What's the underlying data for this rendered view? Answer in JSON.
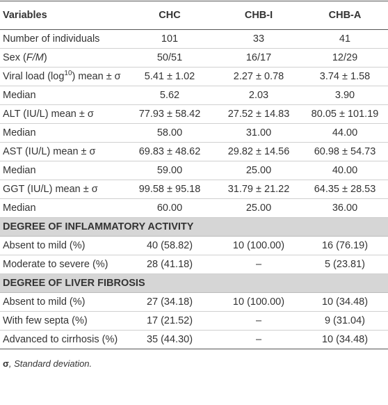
{
  "table": {
    "header": [
      "Variables",
      "CHC",
      "CHB-I",
      "CHB-A"
    ],
    "rows": [
      {
        "label": [
          {
            "text": "Number of individuals"
          }
        ],
        "values": [
          "101",
          "33",
          "41"
        ]
      },
      {
        "label": [
          {
            "text": "Sex ("
          },
          {
            "text": "F/M",
            "italic": true
          },
          {
            "text": ")"
          }
        ],
        "values": [
          "50/51",
          "16/17",
          "12/29"
        ]
      },
      {
        "label": [
          {
            "text": "Viral load (log"
          },
          {
            "text": "10",
            "sup": true
          },
          {
            "text": ") mean ± σ"
          }
        ],
        "values": [
          "5.41 ± 1.02",
          "2.27 ± 0.78",
          "3.74 ± 1.58"
        ]
      },
      {
        "label": [
          {
            "text": "Median"
          }
        ],
        "values": [
          "5.62",
          "2.03",
          "3.90"
        ]
      },
      {
        "label": [
          {
            "text": "ALT (IU/L) mean ± σ"
          }
        ],
        "values": [
          "77.93 ± 58.42",
          "27.52 ± 14.83",
          "80.05 ± 101.19"
        ]
      },
      {
        "label": [
          {
            "text": "Median"
          }
        ],
        "values": [
          "58.00",
          "31.00",
          "44.00"
        ]
      },
      {
        "label": [
          {
            "text": "AST (IU/L) mean ± σ"
          }
        ],
        "values": [
          "69.83 ± 48.62",
          "29.82 ± 14.56",
          "60.98 ± 54.73"
        ]
      },
      {
        "label": [
          {
            "text": "Median"
          }
        ],
        "values": [
          "59.00",
          "25.00",
          "40.00"
        ]
      },
      {
        "label": [
          {
            "text": "GGT (IU/L) mean ± σ"
          }
        ],
        "values": [
          "99.58 ± 95.18",
          "31.79 ± 21.22",
          "64.35 ± 28.53"
        ]
      },
      {
        "label": [
          {
            "text": "Median"
          }
        ],
        "values": [
          "60.00",
          "25.00",
          "36.00"
        ]
      }
    ],
    "sections": [
      {
        "title": "DEGREE OF INFLAMMATORY ACTIVITY",
        "rows": [
          {
            "label": [
              {
                "text": "Absent to mild (%)"
              }
            ],
            "values": [
              "40 (58.82)",
              "10 (100.00)",
              "16 (76.19)"
            ]
          },
          {
            "label": [
              {
                "text": "Moderate to severe (%)"
              }
            ],
            "values": [
              "28 (41.18)",
              "–",
              "5 (23.81)"
            ]
          }
        ]
      },
      {
        "title": "DEGREE OF LIVER FIBROSIS",
        "rows": [
          {
            "label": [
              {
                "text": "Absent to mild (%)"
              }
            ],
            "values": [
              "27 (34.18)",
              "10 (100.00)",
              "10 (34.48)"
            ]
          },
          {
            "label": [
              {
                "text": "With few septa (%)"
              }
            ],
            "values": [
              "17 (21.52)",
              "–",
              "9 (31.04)"
            ]
          },
          {
            "label": [
              {
                "text": "Advanced to cirrhosis (%)"
              }
            ],
            "values": [
              "35 (44.30)",
              "–",
              "10 (34.48)"
            ]
          }
        ]
      }
    ],
    "footnote": [
      {
        "text": "σ",
        "bold": true
      },
      {
        "text": ", Standard deviation.",
        "italic": true
      }
    ]
  }
}
